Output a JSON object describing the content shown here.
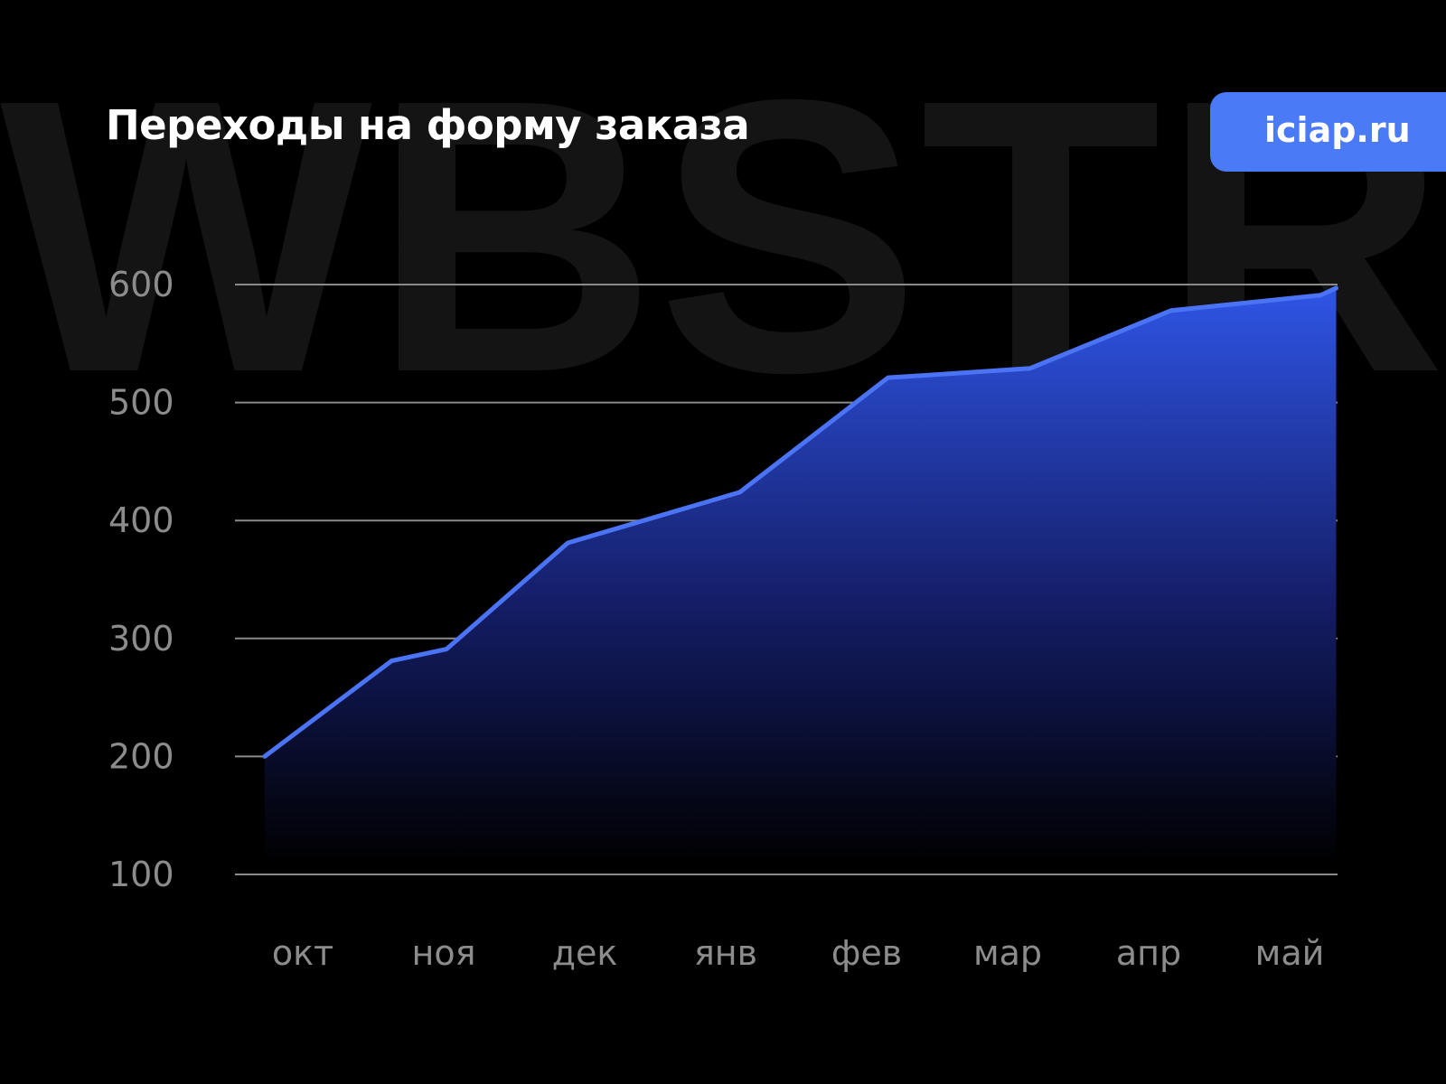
{
  "header": {
    "title": "Переходы на форму заказа",
    "badge": "iciap.ru",
    "watermark": "WBSTR"
  },
  "colors": {
    "background": "#000000",
    "line": "#4a74f5",
    "fill_top": "#2f55e6",
    "badge": "#4a7af5",
    "grid": "#8a8a8a",
    "tick_text": "#8c8c8c",
    "watermark": "#141414"
  },
  "chart_data": {
    "type": "area",
    "title": "Переходы на форму заказа",
    "xlabel": "",
    "ylabel": "",
    "categories": [
      "окт",
      "ноя",
      "дек",
      "янв",
      "фев",
      "мар",
      "апр",
      "май"
    ],
    "yticks": [
      600,
      500,
      400,
      300,
      200,
      100
    ],
    "ylim": [
      100,
      600
    ],
    "grid": true,
    "series": [
      {
        "points": [
          {
            "x": -0.27,
            "y": 200
          },
          {
            "x": 0.63,
            "y": 281
          },
          {
            "x": 1.02,
            "y": 291
          },
          {
            "x": 1.88,
            "y": 381
          },
          {
            "x": 3.1,
            "y": 424
          },
          {
            "x": 4.15,
            "y": 521
          },
          {
            "x": 5.16,
            "y": 529
          },
          {
            "x": 6.16,
            "y": 578
          },
          {
            "x": 7.22,
            "y": 591
          },
          {
            "x": 7.33,
            "y": 597
          }
        ]
      }
    ]
  }
}
